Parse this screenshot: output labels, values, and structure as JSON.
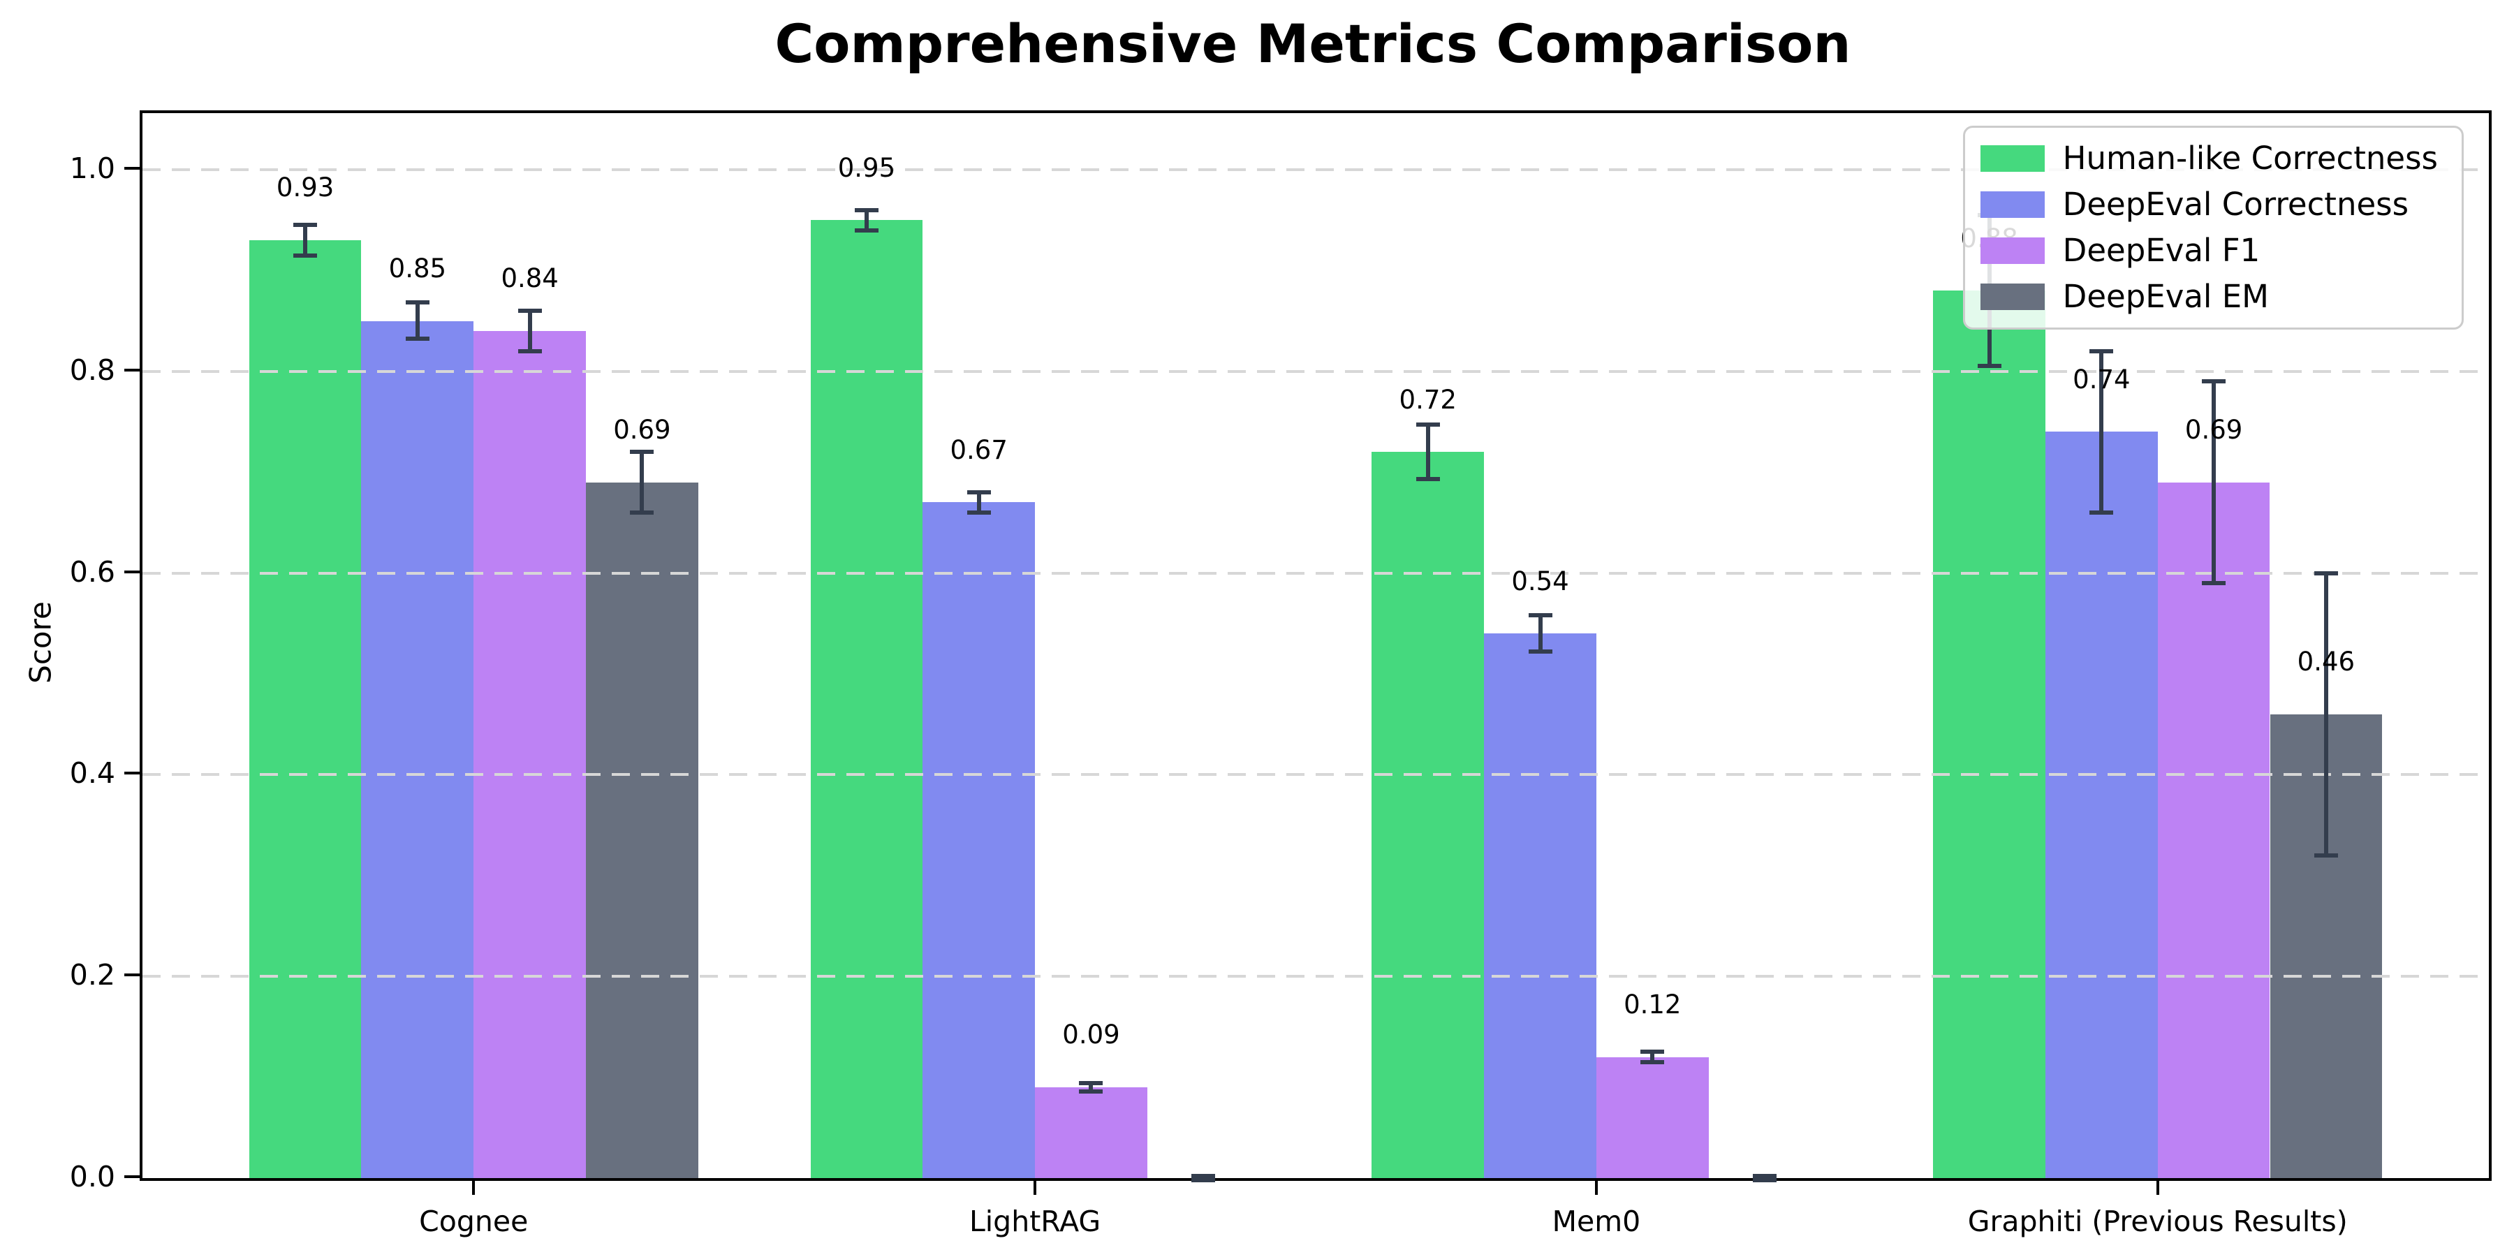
{
  "title": "Comprehensive Metrics Comparison",
  "chart_data": {
    "type": "bar",
    "title": "Comprehensive Metrics Comparison",
    "ylabel": "Score",
    "categories": [
      "Cognee",
      "LightRAG",
      "Mem0",
      "Graphiti (Previous Results)"
    ],
    "series": [
      {
        "name": "Human-like Correctness",
        "color": "#45d97e",
        "values": [
          0.93,
          0.95,
          0.72,
          0.88
        ],
        "errors": [
          0.015,
          0.01,
          0.027,
          0.075
        ]
      },
      {
        "name": "DeepEval Correctness",
        "color": "#818af0",
        "values": [
          0.85,
          0.67,
          0.54,
          0.74
        ],
        "errors": [
          0.018,
          0.01,
          0.018,
          0.08
        ]
      },
      {
        "name": "DeepEval F1",
        "color": "#bd82f4",
        "values": [
          0.84,
          0.09,
          0.12,
          0.69
        ],
        "errors": [
          0.02,
          0.004,
          0.005,
          0.1
        ]
      },
      {
        "name": "DeepEval EM",
        "color": "#68707f",
        "values": [
          0.69,
          0.0,
          0.0,
          0.46
        ],
        "errors": [
          0.03,
          0.002,
          0.002,
          0.14
        ]
      }
    ],
    "yticks": [
      0.0,
      0.2,
      0.4,
      0.6,
      0.8,
      1.0
    ],
    "ylim": [
      0,
      1.056
    ],
    "xlim": [
      -0.59,
      3.59
    ],
    "bar_width": 0.2,
    "group_offsets": [
      -0.3,
      -0.1,
      0.1,
      0.3
    ],
    "grid": {
      "axis": "y",
      "style": "dashed",
      "color": "#d7d7d7",
      "on_top_of_bars": true
    },
    "legend": {
      "position": "upper right"
    },
    "error_bar_color": "#333d4d",
    "value_label_format": ".2f",
    "value_label_offset": 0.035,
    "spine_color": "#000000",
    "background": "#ffffff"
  }
}
